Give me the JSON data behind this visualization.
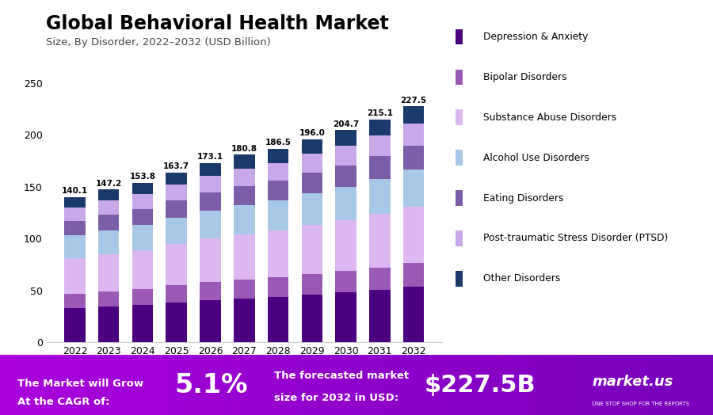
{
  "title": "Global Behavioral Health Market",
  "subtitle": "Size, By Disorder, 2022–2032 (USD Billion)",
  "years": [
    2022,
    2023,
    2024,
    2025,
    2026,
    2027,
    2028,
    2029,
    2030,
    2031,
    2032
  ],
  "totals": [
    140.1,
    147.2,
    153.8,
    163.7,
    173.1,
    180.8,
    186.5,
    196.0,
    204.7,
    215.1,
    227.5
  ],
  "segments": {
    "Depression & Anxiety": [
      33.0,
      34.7,
      36.2,
      38.5,
      40.7,
      42.5,
      43.9,
      46.2,
      48.1,
      50.6,
      53.5
    ],
    "Bipolar Disorders": [
      14.0,
      14.7,
      15.4,
      16.4,
      17.3,
      18.1,
      18.7,
      19.6,
      20.5,
      21.5,
      22.7
    ],
    "Substance Abuse Disorders": [
      34.0,
      35.7,
      37.3,
      39.7,
      41.9,
      43.7,
      45.1,
      47.5,
      49.5,
      52.0,
      54.9
    ],
    "Alcohol Use Disorders": [
      22.0,
      23.1,
      24.1,
      25.7,
      27.2,
      28.3,
      29.3,
      30.8,
      32.1,
      33.7,
      35.6
    ],
    "Eating Disorders": [
      14.0,
      14.7,
      15.4,
      16.4,
      17.3,
      18.1,
      18.7,
      19.6,
      20.5,
      21.5,
      22.7
    ],
    "Post-traumatic Stress Disorder (PTSD)": [
      13.0,
      13.7,
      14.3,
      15.2,
      16.1,
      16.8,
      17.4,
      18.3,
      19.1,
      20.1,
      21.2
    ],
    "Other Disorders": [
      10.1,
      10.6,
      11.1,
      11.8,
      12.6,
      13.3,
      13.4,
      14.0,
      14.9,
      15.7,
      16.9
    ]
  },
  "colors": {
    "Depression & Anxiety": "#4a0080",
    "Bipolar Disorders": "#9b59b6",
    "Substance Abuse Disorders": "#ddb8f0",
    "Alcohol Use Disorders": "#a8c8e8",
    "Eating Disorders": "#7b5ea7",
    "Post-traumatic Stress Disorder (PTSD)": "#c8a8e8",
    "Other Disorders": "#1a3a6b"
  },
  "ylim": [
    0,
    280
  ],
  "yticks": [
    0,
    50,
    100,
    150,
    200,
    250
  ],
  "footer_bg_left": "#9900cc",
  "footer_bg_right": "#6600aa",
  "footer_text1": "The Market will Grow\nAt the CAGR of:",
  "footer_highlight": "5.1%",
  "footer_text2": "The forecasted market\nsize for 2032 in USD:",
  "footer_value": "$227.5B",
  "footer_logo": "market.us",
  "footer_subtext": "ONE STOP SHOP FOR THE REPORTS",
  "background_color": "#ffffff",
  "legend_order": [
    "Depression & Anxiety",
    "Bipolar Disorders",
    "Substance Abuse Disorders",
    "Alcohol Use Disorders",
    "Eating Disorders",
    "Post-traumatic Stress Disorder (PTSD)",
    "Other Disorders"
  ]
}
